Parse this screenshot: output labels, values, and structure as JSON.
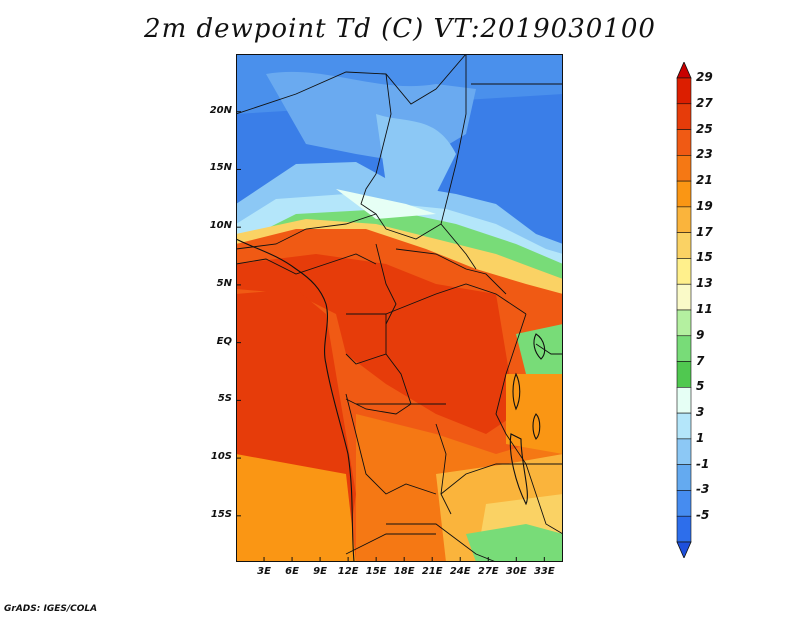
{
  "title": "2m dewpoint Td (C) VT:2019030100",
  "footer": "GrADS: IGES/COLA",
  "map": {
    "region": "Central Africa",
    "lat_range": [
      -19,
      25
    ],
    "lon_range": [
      0,
      35
    ],
    "lat_ticks": [
      "20N",
      "15N",
      "10N",
      "5N",
      "EQ",
      "5S",
      "10S",
      "15S"
    ],
    "lat_values": [
      20,
      15,
      10,
      5,
      0,
      -5,
      -10,
      -15
    ],
    "lon_ticks": [
      "3E",
      "6E",
      "9E",
      "12E",
      "15E",
      "18E",
      "21E",
      "24E",
      "27E",
      "30E",
      "33E"
    ],
    "lon_values": [
      3,
      6,
      9,
      12,
      15,
      18,
      21,
      24,
      27,
      30,
      33
    ]
  },
  "colorbar": {
    "labels": [
      "29",
      "27",
      "25",
      "23",
      "21",
      "19",
      "17",
      "15",
      "13",
      "11",
      "9",
      "7",
      "5",
      "3",
      "1",
      "-1",
      "-3",
      "-5"
    ],
    "colors": [
      "#c80000",
      "#dc1e00",
      "#e63c0a",
      "#f05a14",
      "#f57814",
      "#fa9614",
      "#fab43c",
      "#fad264",
      "#fff08c",
      "#fafac8",
      "#b4f0a0",
      "#78dc78",
      "#50c850",
      "#e6fff5",
      "#b4e6fa",
      "#8cc8f5",
      "#64aaf0",
      "#468cf0",
      "#2d6eeb",
      "#1e50dc"
    ]
  }
}
